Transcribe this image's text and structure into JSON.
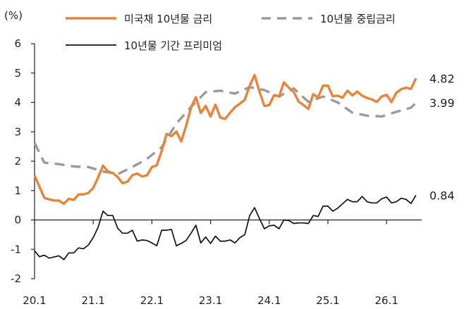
{
  "chart_data": {
    "type": "line",
    "ylabel": "(%)",
    "ylim": [
      -2,
      6
    ],
    "yticks": [
      "6",
      "5",
      "4",
      "3",
      "2",
      "1",
      "0",
      "-1",
      "-2"
    ],
    "xticks": [
      "20.1",
      "21.1",
      "22.1",
      "23.1",
      "24.1",
      "25.1",
      "26.1"
    ],
    "xrange": [
      "2020-01",
      "2026-07"
    ],
    "grid": false,
    "legend_position": "top",
    "colors": {
      "us10y": "#E8833A",
      "neutral": "#9A9A9A",
      "premium": "#111111"
    },
    "series": [
      {
        "key": "us10y",
        "name": "미국채 10년물 금리",
        "style": "solid",
        "end_label": "4.82",
        "points": [
          [
            "2020-01",
            1.52
          ],
          [
            "2020-02",
            1.13
          ],
          [
            "2020-03",
            0.75
          ],
          [
            "2020-04",
            0.7
          ],
          [
            "2020-05",
            0.66
          ],
          [
            "2020-06",
            0.66
          ],
          [
            "2020-07",
            0.55
          ],
          [
            "2020-08",
            0.72
          ],
          [
            "2020-09",
            0.68
          ],
          [
            "2020-10",
            0.87
          ],
          [
            "2020-11",
            0.87
          ],
          [
            "2020-12",
            0.92
          ],
          [
            "2021-01",
            1.09
          ],
          [
            "2021-02",
            1.45
          ],
          [
            "2021-03",
            1.85
          ],
          [
            "2021-04",
            1.65
          ],
          [
            "2021-05",
            1.6
          ],
          [
            "2021-06",
            1.46
          ],
          [
            "2021-07",
            1.25
          ],
          [
            "2021-08",
            1.3
          ],
          [
            "2021-09",
            1.52
          ],
          [
            "2021-10",
            1.58
          ],
          [
            "2021-11",
            1.48
          ],
          [
            "2021-12",
            1.52
          ],
          [
            "2022-01",
            1.8
          ],
          [
            "2022-02",
            1.86
          ],
          [
            "2022-03",
            2.35
          ],
          [
            "2022-04",
            2.93
          ],
          [
            "2022-05",
            2.85
          ],
          [
            "2022-06",
            3.01
          ],
          [
            "2022-07",
            2.67
          ],
          [
            "2022-08",
            3.2
          ],
          [
            "2022-09",
            3.83
          ],
          [
            "2022-10",
            4.18
          ],
          [
            "2022-11",
            3.64
          ],
          [
            "2022-12",
            3.88
          ],
          [
            "2023-01",
            3.52
          ],
          [
            "2023-02",
            3.92
          ],
          [
            "2023-03",
            3.48
          ],
          [
            "2023-04",
            3.44
          ],
          [
            "2023-05",
            3.65
          ],
          [
            "2023-06",
            3.84
          ],
          [
            "2023-07",
            3.96
          ],
          [
            "2023-08",
            4.09
          ],
          [
            "2023-09",
            4.57
          ],
          [
            "2023-10",
            4.93
          ],
          [
            "2023-11",
            4.37
          ],
          [
            "2023-12",
            3.88
          ],
          [
            "2024-01",
            3.91
          ],
          [
            "2024-02",
            4.25
          ],
          [
            "2024-03",
            4.2
          ],
          [
            "2024-04",
            4.68
          ],
          [
            "2024-05",
            4.5
          ],
          [
            "2024-06",
            4.36
          ],
          [
            "2024-07",
            4.03
          ],
          [
            "2024-08",
            3.91
          ],
          [
            "2024-09",
            3.78
          ],
          [
            "2024-10",
            4.28
          ],
          [
            "2024-11",
            4.17
          ],
          [
            "2024-12",
            4.57
          ],
          [
            "2025-01",
            4.57
          ],
          [
            "2025-02",
            4.21
          ],
          [
            "2025-03",
            4.23
          ],
          [
            "2025-04",
            4.16
          ],
          [
            "2025-05",
            4.4
          ],
          [
            "2025-06",
            4.24
          ],
          [
            "2025-07",
            4.37
          ],
          [
            "2025-08",
            4.23
          ],
          [
            "2025-09",
            4.15
          ],
          [
            "2025-10",
            4.1
          ],
          [
            "2025-11",
            4.02
          ],
          [
            "2025-12",
            4.2
          ],
          [
            "2026-01",
            4.26
          ],
          [
            "2026-02",
            4.01
          ],
          [
            "2026-03",
            4.33
          ],
          [
            "2026-04",
            4.45
          ],
          [
            "2026-05",
            4.5
          ],
          [
            "2026-06",
            4.46
          ],
          [
            "2026-07",
            4.82
          ]
        ]
      },
      {
        "key": "neutral",
        "name": "10년물 중립금리",
        "style": "dashed",
        "end_label": "3.99",
        "points": [
          [
            "2020-01",
            2.62
          ],
          [
            "2020-03",
            1.95
          ],
          [
            "2020-06",
            1.9
          ],
          [
            "2020-09",
            1.82
          ],
          [
            "2020-12",
            1.8
          ],
          [
            "2021-03",
            1.65
          ],
          [
            "2021-06",
            1.56
          ],
          [
            "2021-09",
            1.8
          ],
          [
            "2021-12",
            2.08
          ],
          [
            "2022-03",
            2.48
          ],
          [
            "2022-06",
            3.28
          ],
          [
            "2022-09",
            3.85
          ],
          [
            "2022-12",
            4.35
          ],
          [
            "2023-03",
            4.4
          ],
          [
            "2023-06",
            4.3
          ],
          [
            "2023-09",
            4.52
          ],
          [
            "2023-12",
            4.42
          ],
          [
            "2024-03",
            4.2
          ],
          [
            "2024-06",
            4.48
          ],
          [
            "2024-09",
            4.02
          ],
          [
            "2024-12",
            4.2
          ],
          [
            "2025-03",
            4.0
          ],
          [
            "2025-06",
            3.65
          ],
          [
            "2025-09",
            3.55
          ],
          [
            "2025-12",
            3.52
          ],
          [
            "2026-03",
            3.68
          ],
          [
            "2026-06",
            3.82
          ],
          [
            "2026-07",
            3.99
          ]
        ]
      },
      {
        "key": "premium",
        "name": "10년물 기간 프리미엄",
        "style": "solid",
        "end_label": "0.84",
        "points": [
          [
            "2020-01",
            -1.05
          ],
          [
            "2020-02",
            -1.25
          ],
          [
            "2020-03",
            -1.2
          ],
          [
            "2020-04",
            -1.3
          ],
          [
            "2020-05",
            -1.26
          ],
          [
            "2020-06",
            -1.22
          ],
          [
            "2020-07",
            -1.35
          ],
          [
            "2020-08",
            -1.12
          ],
          [
            "2020-09",
            -1.12
          ],
          [
            "2020-10",
            -0.95
          ],
          [
            "2020-11",
            -0.98
          ],
          [
            "2020-12",
            -0.85
          ],
          [
            "2021-01",
            -0.6
          ],
          [
            "2021-02",
            -0.25
          ],
          [
            "2021-03",
            0.3
          ],
          [
            "2021-04",
            0.15
          ],
          [
            "2021-05",
            0.15
          ],
          [
            "2021-06",
            -0.28
          ],
          [
            "2021-07",
            -0.45
          ],
          [
            "2021-08",
            -0.45
          ],
          [
            "2021-09",
            -0.35
          ],
          [
            "2021-10",
            -0.72
          ],
          [
            "2021-11",
            -0.68
          ],
          [
            "2021-12",
            -0.7
          ],
          [
            "2022-01",
            -0.78
          ],
          [
            "2022-02",
            -0.88
          ],
          [
            "2022-03",
            -0.35
          ],
          [
            "2022-04",
            -0.35
          ],
          [
            "2022-05",
            -0.32
          ],
          [
            "2022-06",
            -0.88
          ],
          [
            "2022-07",
            -0.8
          ],
          [
            "2022-08",
            -0.7
          ],
          [
            "2022-09",
            -0.45
          ],
          [
            "2022-10",
            -0.18
          ],
          [
            "2022-11",
            -0.78
          ],
          [
            "2022-12",
            -0.58
          ],
          [
            "2023-01",
            -0.8
          ],
          [
            "2023-02",
            -0.55
          ],
          [
            "2023-03",
            -0.72
          ],
          [
            "2023-04",
            -0.72
          ],
          [
            "2023-05",
            -0.68
          ],
          [
            "2023-06",
            -0.78
          ],
          [
            "2023-07",
            -0.6
          ],
          [
            "2023-08",
            -0.5
          ],
          [
            "2023-09",
            0.15
          ],
          [
            "2023-10",
            0.42
          ],
          [
            "2023-11",
            0.05
          ],
          [
            "2023-12",
            -0.3
          ],
          [
            "2024-01",
            -0.2
          ],
          [
            "2024-02",
            -0.18
          ],
          [
            "2024-03",
            -0.3
          ],
          [
            "2024-04",
            0.0
          ],
          [
            "2024-05",
            -0.02
          ],
          [
            "2024-06",
            -0.12
          ],
          [
            "2024-07",
            -0.1
          ],
          [
            "2024-08",
            -0.1
          ],
          [
            "2024-09",
            -0.12
          ],
          [
            "2024-10",
            0.15
          ],
          [
            "2024-11",
            0.12
          ],
          [
            "2024-12",
            0.47
          ],
          [
            "2025-01",
            0.47
          ],
          [
            "2025-02",
            0.3
          ],
          [
            "2025-03",
            0.4
          ],
          [
            "2025-04",
            0.55
          ],
          [
            "2025-05",
            0.7
          ],
          [
            "2025-06",
            0.62
          ],
          [
            "2025-07",
            0.62
          ],
          [
            "2025-08",
            0.8
          ],
          [
            "2025-09",
            0.62
          ],
          [
            "2025-10",
            0.58
          ],
          [
            "2025-11",
            0.58
          ],
          [
            "2025-12",
            0.72
          ],
          [
            "2026-01",
            0.78
          ],
          [
            "2026-02",
            0.58
          ],
          [
            "2026-03",
            0.62
          ],
          [
            "2026-04",
            0.74
          ],
          [
            "2026-05",
            0.7
          ],
          [
            "2026-06",
            0.56
          ],
          [
            "2026-07",
            0.84
          ]
        ]
      }
    ]
  }
}
